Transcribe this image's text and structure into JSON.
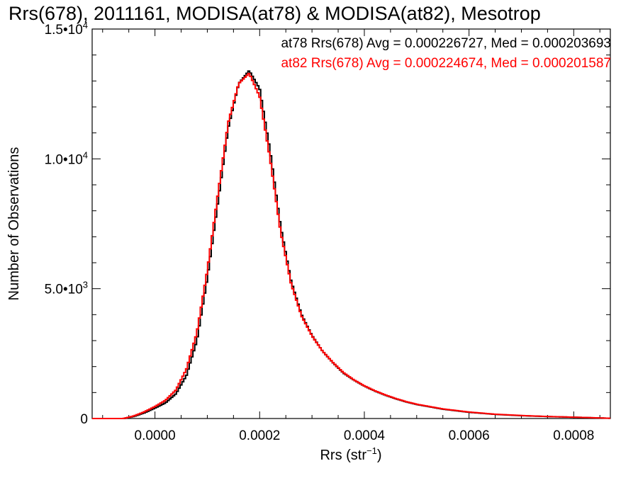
{
  "chart_data": {
    "type": "histogram",
    "title": "Rrs(678), 2011161, MODISA(at78) & MODISA(at82), Mesotrop",
    "xlabel": "Rrs (str",
    "xlabel_sup": "−1",
    "xlabel_close": ")",
    "ylabel": "Number of Observations",
    "xlim": [
      -0.00012,
      0.00087
    ],
    "ylim": [
      0,
      15000
    ],
    "x_ticks": [
      {
        "value": 0.0,
        "label": "0.0000"
      },
      {
        "value": 0.0002,
        "label": "0.0002"
      },
      {
        "value": 0.0004,
        "label": "0.0004"
      },
      {
        "value": 0.0006,
        "label": "0.0006"
      },
      {
        "value": 0.0008,
        "label": "0.0008"
      }
    ],
    "y_ticks": [
      {
        "value": 0,
        "base": "0",
        "exp": ""
      },
      {
        "value": 5000,
        "base": "5.0•10",
        "exp": "3"
      },
      {
        "value": 10000,
        "base": "1.0•10",
        "exp": "4"
      },
      {
        "value": 15000,
        "base": "1.5•10",
        "exp": "4"
      }
    ],
    "legend_position": "top-right",
    "series": [
      {
        "name": "at78",
        "color": "#000000",
        "annotation": "at78 Rrs(678) Avg = 0.000226727, Med = 0.000203693",
        "x": [
          -0.00012,
          -0.0001,
          -8e-05,
          -6e-05,
          -4e-05,
          -2e-05,
          0.0,
          2e-05,
          4e-05,
          6e-05,
          8e-05,
          0.0001,
          0.00012,
          0.00014,
          0.00016,
          0.00018,
          0.0002,
          0.00022,
          0.00024,
          0.00026,
          0.00028,
          0.0003,
          0.00032,
          0.00034,
          0.00036,
          0.00038,
          0.0004,
          0.00042,
          0.00044,
          0.00046,
          0.00048,
          0.0005,
          0.00055,
          0.0006,
          0.00065,
          0.0007,
          0.00075,
          0.0008,
          0.00087
        ],
        "y": [
          0,
          0,
          0,
          0,
          80,
          220,
          400,
          600,
          950,
          1650,
          3000,
          5400,
          8300,
          11200,
          12900,
          13400,
          12700,
          10300,
          7400,
          5300,
          4000,
          3200,
          2600,
          2150,
          1750,
          1480,
          1250,
          1060,
          900,
          760,
          640,
          540,
          360,
          240,
          160,
          110,
          75,
          50,
          10
        ]
      },
      {
        "name": "at82",
        "color": "#ff0000",
        "annotation": "at82 Rrs(678) Avg = 0.000224674, Med = 0.000201587",
        "x": [
          -0.00012,
          -0.0001,
          -8e-05,
          -6e-05,
          -4e-05,
          -2e-05,
          0.0,
          2e-05,
          4e-05,
          6e-05,
          8e-05,
          0.0001,
          0.00012,
          0.00014,
          0.00016,
          0.00018,
          0.0002,
          0.00022,
          0.00024,
          0.00026,
          0.00028,
          0.0003,
          0.00032,
          0.00034,
          0.00036,
          0.00038,
          0.0004,
          0.00042,
          0.00044,
          0.00046,
          0.00048,
          0.0005,
          0.00055,
          0.0006,
          0.00065,
          0.0007,
          0.00075,
          0.0008,
          0.00087
        ],
        "y": [
          0,
          0,
          0,
          0,
          100,
          260,
          460,
          700,
          1100,
          1900,
          3300,
          5700,
          8600,
          11400,
          12900,
          13300,
          12400,
          10000,
          7200,
          5200,
          3950,
          3180,
          2600,
          2160,
          1770,
          1490,
          1260,
          1070,
          910,
          770,
          650,
          550,
          370,
          250,
          165,
          115,
          78,
          52,
          10
        ]
      }
    ]
  }
}
